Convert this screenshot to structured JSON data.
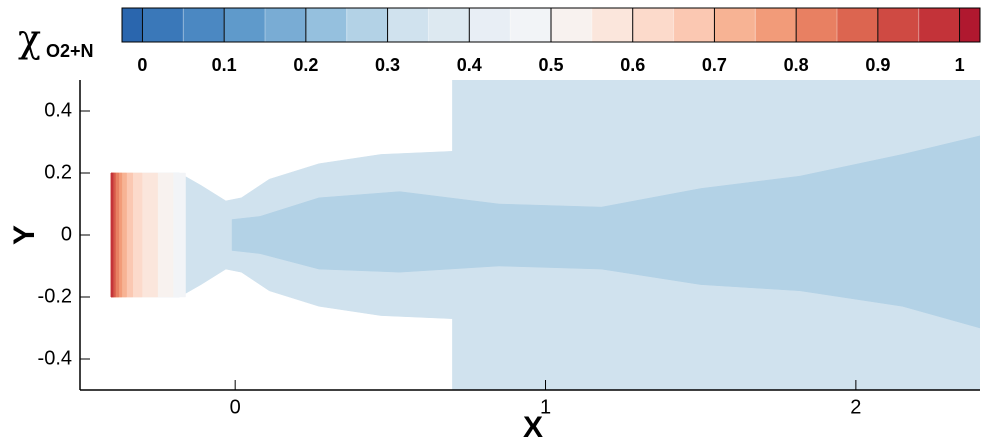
{
  "chart_data": {
    "type": "contour",
    "x_label": "X",
    "y_label": "Y",
    "xlim": [
      -0.5,
      2.4
    ],
    "ylim": [
      -0.5,
      0.5
    ],
    "xticks": [
      0,
      1,
      2
    ],
    "yticks": [
      -0.4,
      -0.2,
      0,
      0.2,
      0.4
    ],
    "colorbar": {
      "label": "χ",
      "label_sub": "O2+N",
      "lim": [
        -0.025,
        1.025
      ],
      "levels": [
        0,
        0.05,
        0.1,
        0.15,
        0.2,
        0.25,
        0.3,
        0.35,
        0.4,
        0.45,
        0.5,
        0.55,
        0.6,
        0.65,
        0.7,
        0.75,
        0.8,
        0.85,
        0.9,
        0.95,
        1
      ],
      "colors": [
        "#2a66ae",
        "#3a78b9",
        "#4b88c2",
        "#5f9acb",
        "#79acd4",
        "#95c0de",
        "#b3d2e6",
        "#d0e2ee",
        "#dde9f1",
        "#e8eef5",
        "#f2f4f7",
        "#f8f2ef",
        "#fbe6dc",
        "#fcdacb",
        "#fbc8b2",
        "#f7b394",
        "#f29b79",
        "#e88062",
        "#dc6550",
        "#cf4a43",
        "#c33339",
        "#b0182f"
      ],
      "ticks": [
        0,
        0.1,
        0.2,
        0.3,
        0.4,
        0.5,
        0.6,
        0.7,
        0.8,
        0.9,
        1
      ]
    },
    "regions": [
      {
        "value": 0.33,
        "x": [
          -0.4,
          -0.18,
          -0.11,
          -0.03,
          0.02,
          0.11,
          0.27,
          0.47,
          0.7,
          0.7,
          2.4,
          2.4,
          0.7,
          0.7,
          0.47,
          0.27,
          0.11,
          0.02,
          -0.03,
          -0.11,
          -0.18,
          -0.4
        ],
        "y": [
          0.2,
          0.2,
          0.16,
          0.11,
          0.12,
          0.18,
          0.23,
          0.26,
          0.27,
          0.5,
          0.5,
          -0.5,
          -0.5,
          -0.27,
          -0.26,
          -0.23,
          -0.18,
          -0.12,
          -0.11,
          -0.16,
          -0.2,
          -0.2
        ]
      },
      {
        "value": 0.28,
        "x": [
          -0.01,
          0.08,
          0.27,
          0.53,
          0.85,
          1.18,
          1.5,
          1.82,
          2.15,
          2.4,
          2.4,
          2.15,
          1.82,
          1.5,
          1.18,
          0.85,
          0.53,
          0.27,
          0.08,
          -0.01
        ],
        "y": [
          0.05,
          0.06,
          0.12,
          0.14,
          0.1,
          0.09,
          0.15,
          0.19,
          0.26,
          0.32,
          -0.3,
          -0.23,
          -0.18,
          -0.16,
          -0.11,
          -0.1,
          -0.12,
          -0.11,
          -0.06,
          -0.05
        ]
      },
      {
        "value": 0.45,
        "x": [
          -0.4,
          -0.16,
          -0.16,
          -0.4
        ],
        "y": [
          0.2,
          0.2,
          -0.2,
          -0.2
        ]
      },
      {
        "value": 0.5,
        "x": [
          -0.4,
          -0.2,
          -0.2,
          -0.4
        ],
        "y": [
          0.2,
          0.2,
          -0.2,
          -0.2
        ]
      },
      {
        "value": 0.55,
        "x": [
          -0.4,
          -0.25,
          -0.25,
          -0.4
        ],
        "y": [
          0.2,
          0.2,
          -0.2,
          -0.2
        ]
      },
      {
        "value": 0.6,
        "x": [
          -0.4,
          -0.3,
          -0.3,
          -0.4
        ],
        "y": [
          0.2,
          0.2,
          -0.2,
          -0.2
        ]
      },
      {
        "value": 0.65,
        "x": [
          -0.4,
          -0.33,
          -0.33,
          -0.4
        ],
        "y": [
          0.2,
          0.2,
          -0.2,
          -0.2
        ]
      },
      {
        "value": 0.7,
        "x": [
          -0.4,
          -0.35,
          -0.35,
          -0.4
        ],
        "y": [
          0.2,
          0.2,
          -0.2,
          -0.2
        ]
      },
      {
        "value": 0.75,
        "x": [
          -0.4,
          -0.365,
          -0.365,
          -0.4
        ],
        "y": [
          0.2,
          0.2,
          -0.2,
          -0.2
        ]
      },
      {
        "value": 0.8,
        "x": [
          -0.4,
          -0.375,
          -0.375,
          -0.4
        ],
        "y": [
          0.2,
          0.2,
          -0.2,
          -0.2
        ]
      },
      {
        "value": 0.85,
        "x": [
          -0.4,
          -0.385,
          -0.385,
          -0.4
        ],
        "y": [
          0.2,
          0.2,
          -0.2,
          -0.2
        ]
      },
      {
        "value": 0.9,
        "x": [
          -0.4,
          -0.39,
          -0.39,
          -0.4
        ],
        "y": [
          0.2,
          0.2,
          -0.2,
          -0.2
        ]
      },
      {
        "value": 0.95,
        "x": [
          -0.4,
          -0.395,
          -0.395,
          -0.4
        ],
        "y": [
          0.2,
          0.2,
          -0.2,
          -0.2
        ]
      }
    ]
  }
}
